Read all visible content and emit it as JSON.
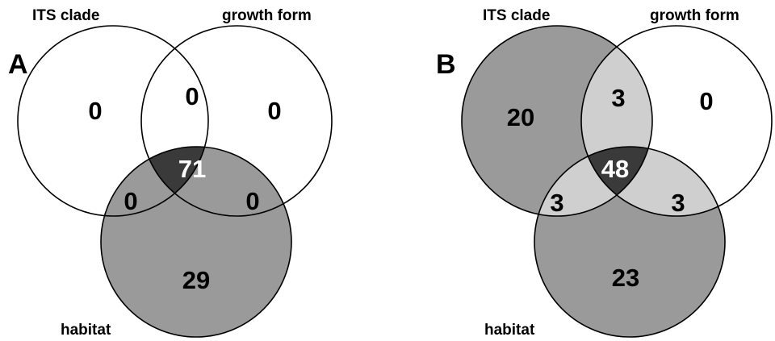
{
  "panels": [
    {
      "label": "A",
      "sets": [
        "ITS clade",
        "growth form",
        "habitat"
      ],
      "regions": {
        "its": 0,
        "growth": 0,
        "habitat": 29,
        "its_growth": 0,
        "its_habitat": 0,
        "growth_habitat": 0,
        "all": 71
      }
    },
    {
      "label": "B",
      "sets": [
        "ITS clade",
        "growth form",
        "habitat"
      ],
      "regions": {
        "its": 20,
        "growth": 0,
        "habitat": 23,
        "its_growth": 3,
        "its_habitat": 3,
        "growth_habitat": 3,
        "all": 48
      }
    }
  ]
}
